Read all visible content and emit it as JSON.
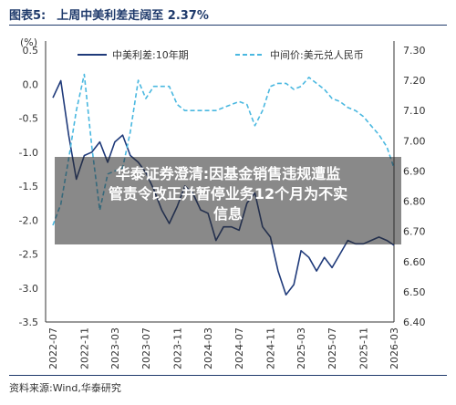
{
  "header": {
    "figure_label": "图表5:",
    "title": "上周中美利差走阔至 2.37%"
  },
  "source": "资料来源:Wind,华泰研究",
  "overlay": {
    "line1": "华泰证券澄清:因基金销售违规遭监",
    "line2": "管责令改正并暂停业务12个月为不实",
    "line3": "信息"
  },
  "colors": {
    "spread": "#1f3a7a",
    "cny": "#4ab8e0"
  },
  "chart_data": {
    "type": "line",
    "title": "上周中美利差走阔至 2.37%",
    "y_unit_label": "(%)",
    "legend": [
      "中美利差:10年期",
      "中间价:美元兑人民币"
    ],
    "legend_position": "top",
    "x_tick_labels": [
      "2022-07",
      "2022-11",
      "2023-03",
      "2023-07",
      "2023-11",
      "2024-03",
      "2024-07",
      "2024-11",
      "2025-03",
      "2025-07",
      "2025-11",
      "2026-03"
    ],
    "y_left": {
      "ylim": [
        -3.5,
        0.5
      ],
      "ticks": [
        "0.5",
        "0.0",
        "-0.5",
        "-1.0",
        "-1.5",
        "-2.0",
        "-2.5",
        "-3.0",
        "-3.5"
      ]
    },
    "y_right": {
      "ylim": [
        6.4,
        7.3
      ],
      "ticks": [
        "7.30",
        "7.20",
        "7.10",
        "7.00",
        "6.90",
        "6.80",
        "6.70",
        "6.60",
        "6.50",
        "6.40"
      ]
    },
    "series": [
      {
        "name": "中美利差:10年期",
        "axis": "left",
        "style": "solid",
        "points": [
          [
            "2022-07",
            -0.2
          ],
          [
            "2022-08",
            0.05
          ],
          [
            "2022-09",
            -0.75
          ],
          [
            "2022-10",
            -1.4
          ],
          [
            "2022-11",
            -1.05
          ],
          [
            "2022-12",
            -1.0
          ],
          [
            "2023-01",
            -0.85
          ],
          [
            "2023-02",
            -1.15
          ],
          [
            "2023-03",
            -0.85
          ],
          [
            "2023-04",
            -0.75
          ],
          [
            "2023-05",
            -1.05
          ],
          [
            "2023-06",
            -1.15
          ],
          [
            "2023-07",
            -1.3
          ],
          [
            "2023-08",
            -1.55
          ],
          [
            "2023-09",
            -1.85
          ],
          [
            "2023-10",
            -2.05
          ],
          [
            "2023-11",
            -1.8
          ],
          [
            "2023-12",
            -1.5
          ],
          [
            "2024-01",
            -1.6
          ],
          [
            "2024-02",
            -1.85
          ],
          [
            "2024-03",
            -1.9
          ],
          [
            "2024-04",
            -2.3
          ],
          [
            "2024-05",
            -2.1
          ],
          [
            "2024-06",
            -2.1
          ],
          [
            "2024-07",
            -2.15
          ],
          [
            "2024-08",
            -1.75
          ],
          [
            "2024-09",
            -1.6
          ],
          [
            "2024-10",
            -2.1
          ],
          [
            "2024-11",
            -2.25
          ],
          [
            "2024-12",
            -2.75
          ],
          [
            "2025-01",
            -3.1
          ],
          [
            "2025-02",
            -2.95
          ],
          [
            "2025-03",
            -2.45
          ],
          [
            "2025-04",
            -2.55
          ],
          [
            "2025-05",
            -2.75
          ],
          [
            "2025-06",
            -2.55
          ],
          [
            "2025-07",
            -2.7
          ],
          [
            "2025-08",
            -2.5
          ],
          [
            "2025-09",
            -2.3
          ],
          [
            "2025-10",
            -2.35
          ],
          [
            "2025-11",
            -2.35
          ],
          [
            "2025-12",
            -2.3
          ],
          [
            "2026-01",
            -2.25
          ],
          [
            "2026-02",
            -2.3
          ],
          [
            "2026-03",
            -2.37
          ]
        ]
      },
      {
        "name": "中间价:美元兑人民币",
        "axis": "right",
        "style": "dashed",
        "points": [
          [
            "2022-07",
            6.72
          ],
          [
            "2022-08",
            6.79
          ],
          [
            "2022-09",
            6.94
          ],
          [
            "2022-10",
            7.1
          ],
          [
            "2022-11",
            7.22
          ],
          [
            "2022-12",
            6.98
          ],
          [
            "2023-01",
            6.77
          ],
          [
            "2023-02",
            6.89
          ],
          [
            "2023-03",
            6.9
          ],
          [
            "2023-04",
            6.91
          ],
          [
            "2023-05",
            7.03
          ],
          [
            "2023-06",
            7.2
          ],
          [
            "2023-07",
            7.14
          ],
          [
            "2023-08",
            7.18
          ],
          [
            "2023-09",
            7.18
          ],
          [
            "2023-10",
            7.18
          ],
          [
            "2023-11",
            7.12
          ],
          [
            "2023-12",
            7.1
          ],
          [
            "2024-01",
            7.1
          ],
          [
            "2024-02",
            7.1
          ],
          [
            "2024-03",
            7.1
          ],
          [
            "2024-04",
            7.1
          ],
          [
            "2024-05",
            7.11
          ],
          [
            "2024-06",
            7.12
          ],
          [
            "2024-07",
            7.13
          ],
          [
            "2024-08",
            7.12
          ],
          [
            "2024-09",
            7.05
          ],
          [
            "2024-10",
            7.1
          ],
          [
            "2024-11",
            7.18
          ],
          [
            "2024-12",
            7.19
          ],
          [
            "2025-01",
            7.19
          ],
          [
            "2025-02",
            7.17
          ],
          [
            "2025-03",
            7.18
          ],
          [
            "2025-04",
            7.21
          ],
          [
            "2025-05",
            7.19
          ],
          [
            "2025-06",
            7.17
          ],
          [
            "2025-07",
            7.14
          ],
          [
            "2025-08",
            7.13
          ],
          [
            "2025-09",
            7.11
          ],
          [
            "2025-10",
            7.1
          ],
          [
            "2025-11",
            7.08
          ],
          [
            "2025-12",
            7.05
          ],
          [
            "2026-01",
            7.02
          ],
          [
            "2026-02",
            6.98
          ],
          [
            "2026-03",
            6.91
          ]
        ]
      }
    ]
  }
}
